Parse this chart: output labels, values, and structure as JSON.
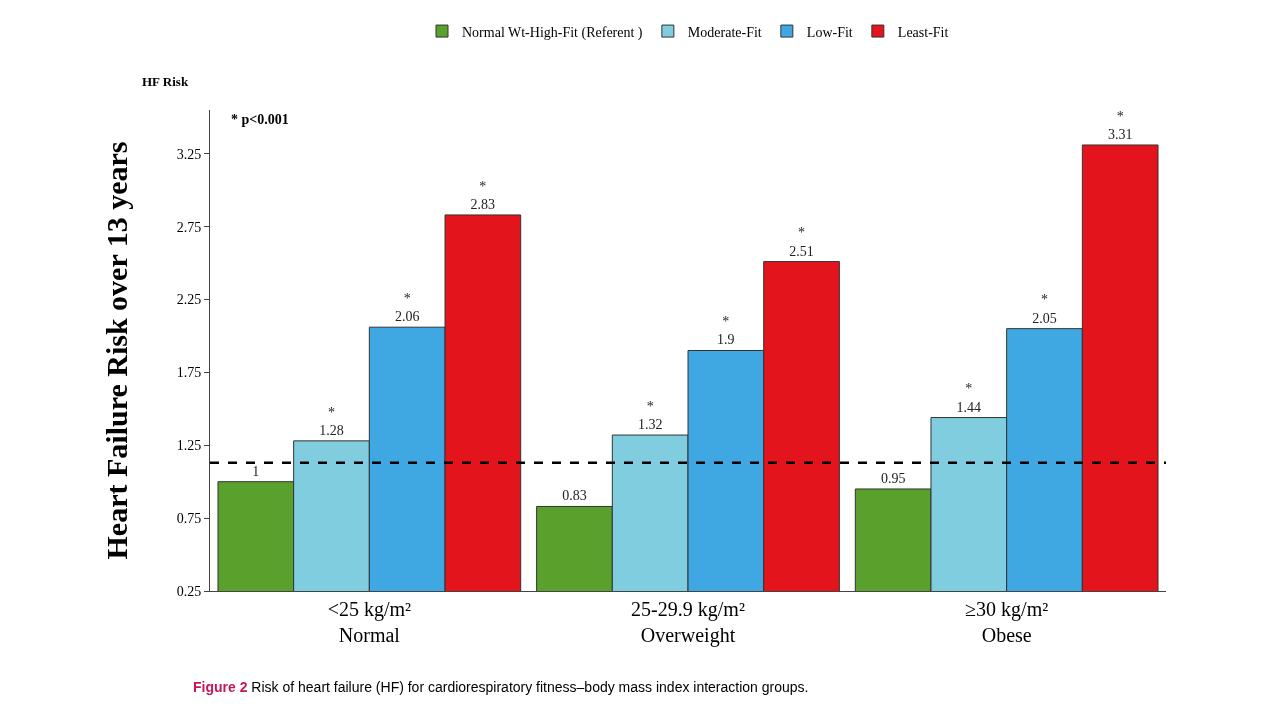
{
  "chart_data": {
    "type": "bar",
    "ylabel": "Heart Failure Risk over 13 years",
    "categories": [
      "<25 kg/m²\nNormal",
      "25-29.9 kg/m²\nOverweight",
      "≥30 kg/m²\nObese"
    ],
    "series": [
      {
        "name": "Normal Wt-High-Fit (Referent )",
        "color": "#5aa02c",
        "values": [
          1,
          0.83,
          0.95
        ],
        "value_labels": [
          "1",
          "0.83",
          "0.95"
        ]
      },
      {
        "name": "Moderate-Fit",
        "color": "#80cde0",
        "values": [
          1.28,
          1.32,
          1.44
        ],
        "value_labels": [
          "*\n1.28",
          "*\n1.32",
          "*\n1.44"
        ]
      },
      {
        "name": "Low-Fit",
        "color": "#3fa8e2",
        "values": [
          2.06,
          1.9,
          2.05
        ],
        "value_labels": [
          "*\n2.06",
          "*\n1.9",
          "*\n2.05"
        ]
      },
      {
        "name": "Least-Fit",
        "color": "#e3141b",
        "values": [
          2.83,
          2.51,
          3.31
        ],
        "value_labels": [
          "*\n2.83",
          "*\n2.51",
          "*\n3.31"
        ]
      }
    ],
    "ylim": [
      0.25,
      3.55
    ],
    "yticks": [
      0.25,
      0.75,
      1.25,
      1.75,
      2.25,
      2.75,
      3.25
    ],
    "ref_lines": [
      {
        "axis": "y",
        "value": 1.13,
        "line_style": "dashed",
        "color": "#000000"
      }
    ],
    "annotations": [
      "HF Risk",
      "* p<0.001",
      "Figure 2 Risk of heart failure (HF) for cardiorespiratory fitness–body mass index interaction groups."
    ],
    "legend": "top"
  }
}
